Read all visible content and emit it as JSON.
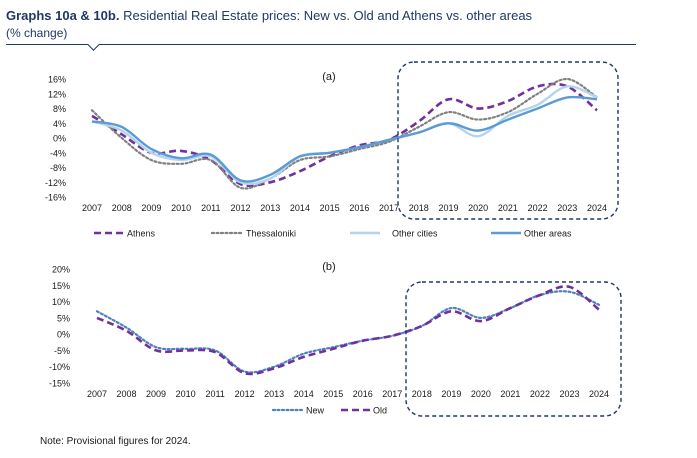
{
  "header": {
    "title_bold": "Graphs 10a & 10b.",
    "title_rest": "Residential Real Estate prices: New vs. Old and Athens vs. other areas",
    "subtitle": "(% change)"
  },
  "note": "Note: Provisional figures for 2024.",
  "colors": {
    "athens": "#7030a0",
    "thessaloniki": "#808080",
    "other_cities": "#b4d4ee",
    "other_areas": "#5b9bd5",
    "new": "#4f81bd",
    "old": "#7030a0",
    "highlight_box": "#1f3864"
  },
  "chart_data": [
    {
      "type": "line",
      "panel_label": "(a)",
      "x": [
        2007,
        2008,
        2009,
        2010,
        2011,
        2012,
        2013,
        2014,
        2015,
        2016,
        2017,
        2018,
        2019,
        2020,
        2021,
        2022,
        2023,
        2024
      ],
      "x_tick_labels": [
        "2007",
        "2008",
        "2009",
        "2010",
        "2011",
        "2012",
        "2013",
        "2014",
        "2015",
        "2016",
        "2017",
        "2018",
        "2019",
        "2020",
        "2021",
        "2022",
        "2023",
        "2024"
      ],
      "ylim": [
        -16,
        16
      ],
      "y_ticks": [
        16,
        12,
        8,
        4,
        0,
        -4,
        -8,
        -12,
        -16
      ],
      "y_tick_labels": [
        "16%",
        "12%",
        "8%",
        "4%",
        "0%",
        "-4%",
        "-8%",
        "-12%",
        "-16%"
      ],
      "highlight_range": [
        2018,
        2024
      ],
      "legend_position": "bottom",
      "series": [
        {
          "name": "Athens",
          "style": "dashed",
          "color": "#7030a0",
          "values": [
            6,
            1,
            -4,
            -3.5,
            -6,
            -12.5,
            -12,
            -9,
            -5,
            -2,
            -0.5,
            4.5,
            10.5,
            8,
            10,
            14,
            14,
            7.5
          ]
        },
        {
          "name": "Thessaloniki",
          "style": "dotted",
          "color": "#808080",
          "values": [
            7.5,
            0,
            -6,
            -7,
            -6,
            -13.5,
            -11,
            -6,
            -5,
            -3,
            -1,
            3,
            7,
            5,
            7,
            12,
            16,
            11
          ]
        },
        {
          "name": "Other cities",
          "style": "solid",
          "color": "#b4d4ee",
          "values": [
            4.5,
            2,
            -4,
            -6,
            -5,
            -12,
            -11,
            -5,
            -4,
            -2.5,
            -0.5,
            1.5,
            4,
            0.5,
            6,
            9,
            14,
            11
          ]
        },
        {
          "name": "Other areas",
          "style": "solid",
          "color": "#5b9bd5",
          "values": [
            4.5,
            3,
            -3,
            -5.5,
            -4.5,
            -11.5,
            -10,
            -5,
            -4,
            -2.5,
            -0.5,
            1.5,
            4,
            2,
            5,
            8,
            11,
            10.5
          ]
        }
      ]
    },
    {
      "type": "line",
      "panel_label": "(b)",
      "x": [
        2007,
        2008,
        2009,
        2010,
        2011,
        2012,
        2013,
        2014,
        2015,
        2016,
        2017,
        2018,
        2019,
        2020,
        2021,
        2022,
        2023,
        2024
      ],
      "x_tick_labels": [
        "2007",
        "2008",
        "2009",
        "2010",
        "2011",
        "2012",
        "2013",
        "2014",
        "2015",
        "2016",
        "2017",
        "2018",
        "2019",
        "2020",
        "2021",
        "2022",
        "2023",
        "2024"
      ],
      "ylim": [
        -15,
        20
      ],
      "y_ticks": [
        20,
        15,
        10,
        5,
        0,
        -5,
        -10,
        -15
      ],
      "y_tick_labels": [
        "20%",
        "15%",
        "10%",
        "5%",
        "0%",
        "-5%",
        "-10%",
        "-15%"
      ],
      "highlight_range": [
        2018,
        2024
      ],
      "legend_position": "bottom",
      "series": [
        {
          "name": "New",
          "style": "dotted",
          "color": "#4f81bd",
          "values": [
            7,
            2,
            -4,
            -4.5,
            -5,
            -11.5,
            -10,
            -6,
            -4,
            -2,
            -0.5,
            2.5,
            8,
            5,
            8,
            12,
            13,
            9
          ]
        },
        {
          "name": "Old",
          "style": "dashed",
          "color": "#7030a0",
          "values": [
            5,
            1,
            -5,
            -5,
            -5.5,
            -12,
            -10.5,
            -7,
            -4.5,
            -2,
            -0.5,
            2.5,
            7,
            4,
            8,
            12,
            14.5,
            7.5
          ]
        }
      ]
    }
  ]
}
